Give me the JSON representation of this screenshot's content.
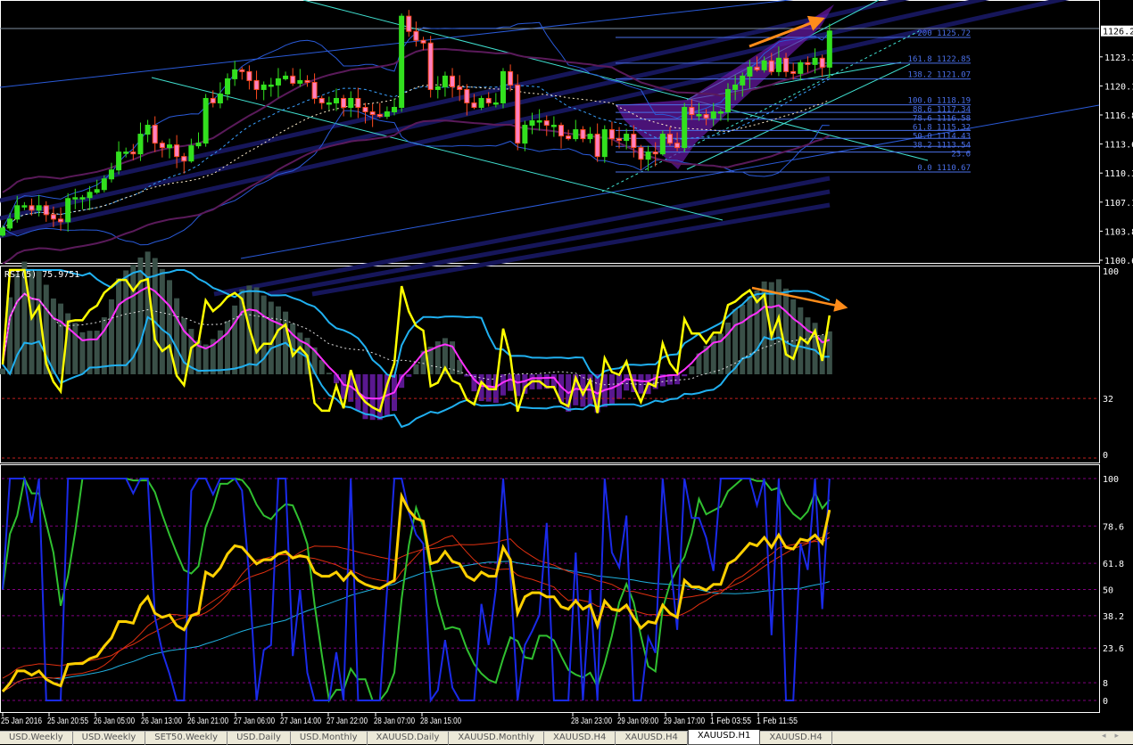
{
  "chart_data": {
    "type": "candlestick",
    "symbol_timeframe": "XAUUSD.H1",
    "closes": [
      1104.2,
      1105.2,
      1106.7,
      1106.7,
      1106.2,
      1106.7,
      1105.7,
      1105.2,
      1104.9,
      1107.5,
      1107.6,
      1107.6,
      1108.2,
      1108.5,
      1109.7,
      1110.7,
      1112.7,
      1112.7,
      1112.5,
      1114.7,
      1115.7,
      1113.7,
      1113.2,
      1113.5,
      1112.2,
      1111.7,
      1113.4,
      1113.7,
      1118.7,
      1118.2,
      1119.2,
      1120.9,
      1121.9,
      1121.7,
      1120.7,
      1119.7,
      1120.2,
      1120.2,
      1120.9,
      1121.2,
      1120.4,
      1120.7,
      1120.5,
      1118.7,
      1118.2,
      1118.2,
      1118.7,
      1117.7,
      1118.7,
      1117.7,
      1117.2,
      1116.9,
      1116.7,
      1117.2,
      1117.7,
      1127.9,
      1126.2,
      1125.2,
      1124.9,
      1119.7,
      1120.0,
      1121.2,
      1120.0,
      1119.7,
      1118.2,
      1117.7,
      1118.7,
      1118.2,
      1118.2,
      1121.7,
      1120.2,
      1113.7,
      1115.7,
      1116.2,
      1116.2,
      1115.7,
      1115.7,
      1114.5,
      1114.2,
      1115.2,
      1114.2,
      1114.7,
      1112.2,
      1115.2,
      1114.2,
      1114.0,
      1114.7,
      1113.2,
      1111.9,
      1112.7,
      1112.5,
      1114.7,
      1113.7,
      1113.2,
      1117.7,
      1116.9,
      1116.9,
      1116.5,
      1117.2,
      1117.2,
      1119.7,
      1120.2,
      1121.2,
      1122.2,
      1121.9,
      1122.9,
      1121.7,
      1123.2,
      1121.7,
      1121.5,
      1122.7,
      1122.5,
      1123.2,
      1122.2,
      1126.25
    ],
    "price_axis": {
      "ticks": [
        "1123.35",
        "1120.10",
        "1116.85",
        "1113.60",
        "1110.35",
        "1107.10",
        "1103.85",
        "1100.60"
      ],
      "current_price": "1126.25",
      "ylim": [
        1100.6,
        1126.6
      ]
    },
    "time_axis": [
      "25 Jan 2016",
      "25 Jan 20:55",
      "26 Jan 05:00",
      "26 Jan 13:00",
      "26 Jan 21:00",
      "27 Jan 06:00",
      "27 Jan 14:00",
      "27 Jan 22:00",
      "28 Jan 07:00",
      "28 Jan 15:00",
      "28 Jan 23:00",
      "29 Jan 09:00",
      "29 Jan 17:00",
      "1 Feb 03:55",
      "1 Feb 11:55"
    ],
    "fibonacci": [
      {
        "label": "200 1125.72",
        "price": 1125.72
      },
      {
        "label": "161.8 1122.85",
        "price": 1122.85
      },
      {
        "label": "138.2 1121.07",
        "price": 1121.07
      },
      {
        "label": "100.0 1118.19",
        "price": 1118.19
      },
      {
        "label": "88.6 1117.34",
        "price": 1117.34
      },
      {
        "label": "78.6 1116.58",
        "price": 1116.58
      },
      {
        "label": "61.8 1115.32",
        "price": 1115.32
      },
      {
        "label": "50.0 1114.43",
        "price": 1114.43
      },
      {
        "label": "38.2 1113.54",
        "price": 1113.54
      },
      {
        "label": "23.6",
        "price": 1112.9
      },
      {
        "label": "0.0 1110.67",
        "price": 1110.67
      }
    ],
    "rsi_panel": {
      "label": "RSI(5) 75.9751",
      "levels": [
        "100",
        "32",
        "0"
      ]
    },
    "lower_panel": {
      "levels": [
        "100",
        "78.6",
        "61.8",
        "50",
        "38.2",
        "23.6",
        "8",
        "0"
      ]
    },
    "colors": {
      "bull": "#32e01e",
      "bear": "#ff4a1e",
      "bear_body": "#ff80c0",
      "rsi": "#ffff00",
      "arrow": "#ff8c1a",
      "fib": "#4a6fe8",
      "bollinger": "#2a5ad8",
      "ma_purple": "#5a1a5a",
      "band_navy": "#16165a",
      "channel": "#40e0d0"
    }
  },
  "tabs": [
    "USD.Weekly",
    "USD.Weekly",
    "SET50.Weekly",
    "USD.Daily",
    "USD.Monthly",
    "XAUUSD.Daily",
    "XAUUSD.Monthly",
    "XAUUSD.H4",
    "XAUUSD.H4",
    "XAUUSD.H1",
    "XAUUSD.H4"
  ],
  "active_tab": "XAUUSD.H1",
  "tab_nav": {
    "prev": "◂",
    "next": "▸"
  }
}
